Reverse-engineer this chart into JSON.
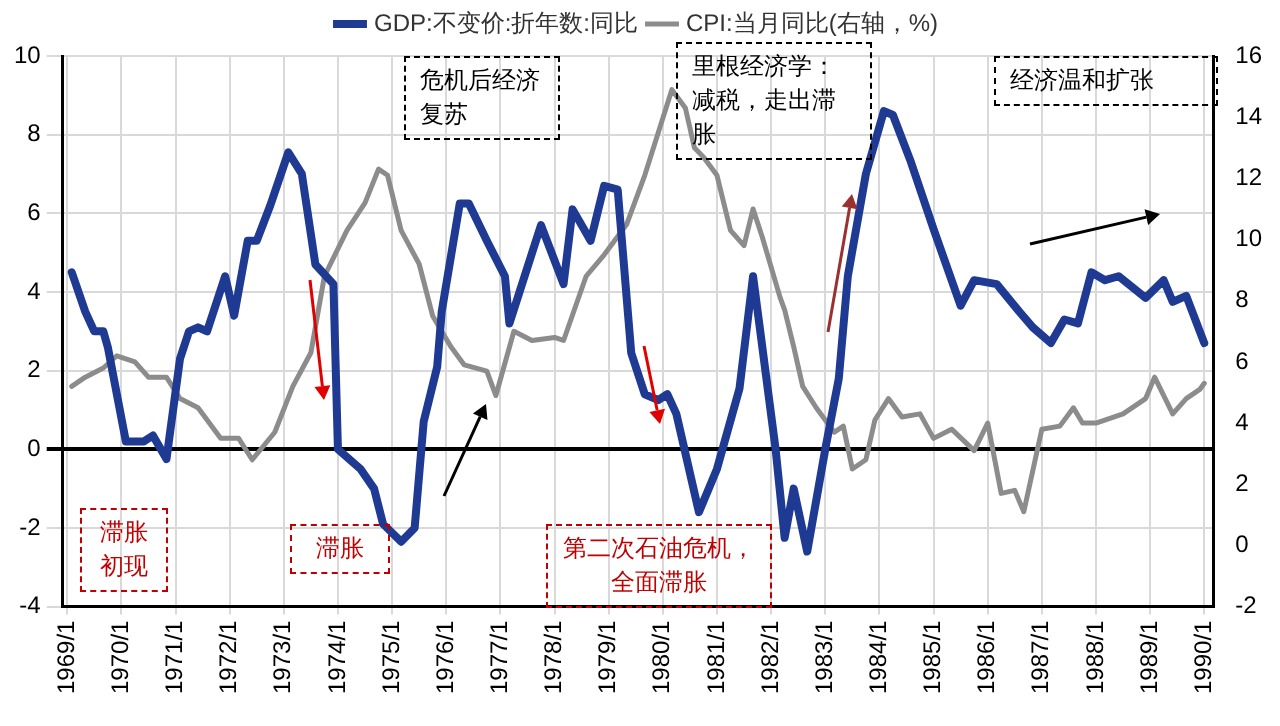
{
  "chart_data": {
    "type": "line",
    "xlim": [
      "1968-12",
      "1990-03"
    ],
    "xticks": [
      {
        "value": "1969-01",
        "label": "1969/1"
      },
      {
        "value": "1970-01",
        "label": "1970/1"
      },
      {
        "value": "1971-01",
        "label": "1971/1"
      },
      {
        "value": "1972-01",
        "label": "1972/1"
      },
      {
        "value": "1973-01",
        "label": "1973/1"
      },
      {
        "value": "1974-01",
        "label": "1974/1"
      },
      {
        "value": "1975-01",
        "label": "1975/1"
      },
      {
        "value": "1976-01",
        "label": "1976/1"
      },
      {
        "value": "1977-01",
        "label": "1977/1"
      },
      {
        "value": "1978-01",
        "label": "1978/1"
      },
      {
        "value": "1979-01",
        "label": "1979/1"
      },
      {
        "value": "1980-01",
        "label": "1980/1"
      },
      {
        "value": "1981-01",
        "label": "1981/1"
      },
      {
        "value": "1982-01",
        "label": "1982/1"
      },
      {
        "value": "1983-01",
        "label": "1983/1"
      },
      {
        "value": "1984-01",
        "label": "1984/1"
      },
      {
        "value": "1985-01",
        "label": "1985/1"
      },
      {
        "value": "1986-01",
        "label": "1986/1"
      },
      {
        "value": "1987-01",
        "label": "1987/1"
      },
      {
        "value": "1988-01",
        "label": "1988/1"
      },
      {
        "value": "1989-01",
        "label": "1989/1"
      },
      {
        "value": "1990-01",
        "label": "1990/1"
      }
    ],
    "ylim": [
      -4,
      10
    ],
    "yticks": [
      -4,
      -2,
      0,
      2,
      4,
      6,
      8,
      10
    ],
    "y2lim": [
      -2,
      16
    ],
    "y2ticks": [
      -2,
      0,
      2,
      4,
      6,
      8,
      10,
      12,
      14,
      16
    ],
    "grid": true,
    "legend": "top",
    "marker": "none",
    "line_style": "solid",
    "series": [
      {
        "name": "GDP:不变价:折年数:同比",
        "color": "#1f3a93",
        "x": [
          "1969-02",
          "1969-05",
          "1969-07",
          "1969-09",
          "1969-10",
          "1970-02",
          "1970-06",
          "1970-08",
          "1970-11",
          "1971-02",
          "1971-04",
          "1971-06",
          "1971-08",
          "1971-12",
          "1972-02",
          "1972-05",
          "1972-07",
          "1972-10",
          "1973-02",
          "1973-05",
          "1973-08",
          "1973-12",
          "1974-01",
          "1974-06",
          "1974-09",
          "1974-11",
          "1975-03",
          "1975-06",
          "1975-08",
          "1975-11",
          "1975-12",
          "1976-04",
          "1976-06",
          "1976-10",
          "1977-02",
          "1977-03",
          "1977-10",
          "1978-03",
          "1978-05",
          "1978-09",
          "1978-12",
          "1979-03",
          "1979-06",
          "1979-09",
          "1979-12",
          "1980-02",
          "1980-04",
          "1980-09",
          "1981-01",
          "1981-06",
          "1981-09",
          "1982-02",
          "1982-04",
          "1982-06",
          "1982-09",
          "1983-01",
          "1983-04",
          "1983-06",
          "1983-10",
          "1984-02",
          "1984-04",
          "1984-08",
          "1985-01",
          "1985-07",
          "1985-10",
          "1986-03",
          "1986-08",
          "1986-11",
          "1987-03",
          "1987-06",
          "1987-09",
          "1987-12",
          "1988-03",
          "1988-06",
          "1988-12",
          "1989-04",
          "1989-06",
          "1989-09",
          "1990-01"
        ],
        "values": [
          4.5,
          3.5,
          3.0,
          3.0,
          2.6,
          0.2,
          0.2,
          0.35,
          -0.25,
          2.3,
          3.0,
          3.1,
          3.0,
          4.4,
          3.4,
          5.3,
          5.3,
          6.2,
          7.55,
          7.0,
          4.7,
          4.2,
          0,
          -0.5,
          -1.0,
          -1.9,
          -2.35,
          -2.0,
          0.7,
          2.1,
          3.5,
          6.25,
          6.25,
          5.3,
          4.4,
          3.2,
          5.7,
          4.2,
          6.1,
          5.3,
          6.7,
          6.6,
          2.45,
          1.4,
          1.25,
          1.4,
          0.9,
          -1.6,
          -0.5,
          1.55,
          4.4,
          0,
          -2.25,
          -1.0,
          -2.6,
          0,
          1.8,
          4.4,
          7.0,
          8.6,
          8.5,
          7.3,
          5.6,
          3.65,
          4.3,
          4.2,
          3.5,
          3.1,
          2.7,
          3.3,
          3.2,
          4.5,
          4.3,
          4.4,
          3.85,
          4.3,
          3.75,
          3.9,
          2.7
        ]
      },
      {
        "name": "CPI:当月同比(右轴，%)",
        "color": "#8c8c8c",
        "axis": "y2",
        "x": [
          "1969-02",
          "1969-05",
          "1969-09",
          "1969-12",
          "1970-04",
          "1970-07",
          "1970-11",
          "1971-02",
          "1971-06",
          "1971-11",
          "1972-03",
          "1972-06",
          "1972-11",
          "1973-03",
          "1973-07",
          "1973-10",
          "1974-03",
          "1974-07",
          "1974-10",
          "1974-12",
          "1975-03",
          "1975-07",
          "1975-10",
          "1976-02",
          "1976-05",
          "1976-10",
          "1976-12",
          "1977-04",
          "1977-08",
          "1978-01",
          "1978-03",
          "1978-08",
          "1978-12",
          "1979-05",
          "1979-09",
          "1979-12",
          "1980-03",
          "1980-06",
          "1980-08",
          "1980-10",
          "1981-01",
          "1981-04",
          "1981-07",
          "1981-09",
          "1981-11",
          "1982-03",
          "1982-04",
          "1982-06",
          "1982-08",
          "1982-11",
          "1983-03",
          "1983-05",
          "1983-07",
          "1983-10",
          "1983-12",
          "1984-03",
          "1984-06",
          "1984-10",
          "1985-01",
          "1985-05",
          "1985-10",
          "1986-01",
          "1986-04",
          "1986-07",
          "1986-09",
          "1987-01",
          "1987-05",
          "1987-08",
          "1987-10",
          "1988-01",
          "1988-07",
          "1988-12",
          "1989-02",
          "1989-06",
          "1989-09",
          "1989-12",
          "1990-01"
        ],
        "values": [
          5.2,
          5.5,
          5.8,
          6.2,
          6.0,
          5.5,
          5.5,
          4.8,
          4.5,
          3.5,
          3.5,
          2.8,
          3.7,
          5.2,
          6.3,
          8.8,
          10.3,
          11.2,
          12.3,
          12.1,
          10.3,
          9.2,
          7.5,
          6.5,
          5.9,
          5.7,
          4.9,
          7.0,
          6.7,
          6.8,
          6.7,
          8.8,
          9.5,
          10.5,
          12.1,
          13.5,
          14.9,
          14.3,
          13.0,
          12.7,
          12.1,
          10.3,
          9.8,
          11.0,
          10.1,
          8.1,
          7.7,
          6.5,
          5.2,
          4.5,
          3.7,
          3.9,
          2.5,
          2.8,
          4.1,
          4.8,
          4.2,
          4.3,
          3.5,
          3.8,
          3.1,
          4.0,
          1.7,
          1.8,
          1.1,
          3.8,
          3.9,
          4.5,
          4.0,
          4.0,
          4.3,
          4.8,
          5.5,
          4.3,
          4.8,
          5.1,
          5.3
        ]
      }
    ],
    "annotations": [
      "危机后经济复苏",
      "里根经济学：减税，走出滞胀",
      "经济温和扩张",
      "滞胀初现",
      "滞胀",
      "第二次石油危机，全面滞胀"
    ]
  }
}
